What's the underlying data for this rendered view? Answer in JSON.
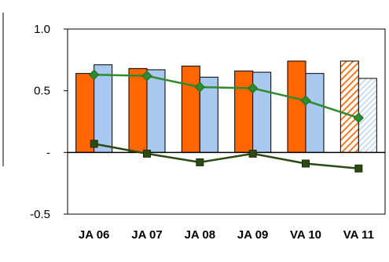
{
  "chart_data": {
    "type": "bar",
    "categories": [
      "JA 06",
      "JA 07",
      "JA 08",
      "JA 09",
      "VA 10",
      "VA 11"
    ],
    "ylim": [
      -0.5,
      1.0
    ],
    "yticks": [
      {
        "value": 1.0,
        "label": "1.0"
      },
      {
        "value": 0.5,
        "label": "0.5"
      },
      {
        "value": 0,
        "label": "-"
      },
      {
        "value": -0.5,
        "label": "-0.5"
      }
    ],
    "grid": false,
    "legend": "none",
    "series": [
      {
        "type": "bar",
        "color": "#ff6600",
        "values": [
          0.64,
          0.68,
          0.7,
          0.66,
          0.74,
          0.74
        ],
        "hatched_last": true
      },
      {
        "type": "bar",
        "color": "#a8c8f0",
        "values": [
          0.71,
          0.67,
          0.61,
          0.65,
          0.64,
          0.6
        ],
        "hatched_last": true
      },
      {
        "type": "line",
        "color": "#2e8b2e",
        "marker": "diamond",
        "values": [
          0.63,
          0.62,
          0.53,
          0.52,
          0.42,
          0.28
        ]
      },
      {
        "type": "line",
        "color": "#2d4a12",
        "marker": "square",
        "values": [
          0.07,
          -0.01,
          -0.08,
          -0.01,
          -0.09,
          -0.13
        ]
      }
    ]
  }
}
